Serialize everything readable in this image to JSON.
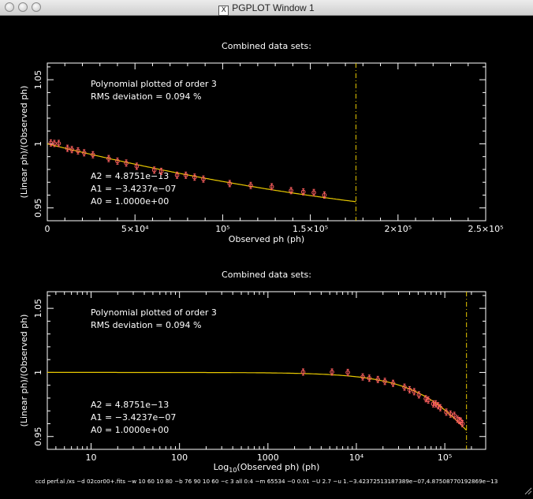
{
  "window": {
    "title": "PGPLOT Window 1",
    "title_icon": "x11-icon"
  },
  "colors": {
    "background": "#000000",
    "axes": "#ffffff",
    "fit": "#e8c800",
    "points": "#ff6060",
    "marker_line": "#e8c800"
  },
  "chart_data": [
    {
      "type": "scatter",
      "title": "Combined data sets:",
      "xlabel": "Observed ph (ph)",
      "ylabel": "(Linear ph)/(Observed ph)",
      "xscale": "linear",
      "xlim": [
        0,
        250000
      ],
      "ylim": [
        0.94,
        1.063
      ],
      "xticks": [
        {
          "value": 0,
          "label": "0"
        },
        {
          "value": 50000,
          "label": "5×10⁴"
        },
        {
          "value": 100000,
          "label": "10⁵"
        },
        {
          "value": 150000,
          "label": "1.5×10⁵"
        },
        {
          "value": 200000,
          "label": "2×10⁵"
        },
        {
          "value": 250000,
          "label": "2.5×10⁵"
        }
      ],
      "yticks": [
        {
          "value": 0.95,
          "label": "0.95"
        },
        {
          "value": 1,
          "label": "1"
        },
        {
          "value": 1.05,
          "label": "1.05"
        }
      ],
      "annotations": {
        "poly": "Polynomial plotted of order  3",
        "rms": "RMS deviation =     0.094  %",
        "a2": "A2 = 4.8751e−13",
        "a1": "A1 = −3.4237e−07",
        "a0": "A0 = 1.0000e+00"
      },
      "vline_x": 176000,
      "fit_range": [
        0,
        176000
      ],
      "points": [
        {
          "x": 2000,
          "y": 1.0007
        },
        {
          "x": 4000,
          "y": 1.0003
        },
        {
          "x": 6500,
          "y": 1.0003
        },
        {
          "x": 11500,
          "y": 0.9965
        },
        {
          "x": 14000,
          "y": 0.9955
        },
        {
          "x": 17500,
          "y": 0.9945
        },
        {
          "x": 21000,
          "y": 0.993
        },
        {
          "x": 26000,
          "y": 0.9915
        },
        {
          "x": 35000,
          "y": 0.9885
        },
        {
          "x": 40000,
          "y": 0.9865
        },
        {
          "x": 45000,
          "y": 0.985
        },
        {
          "x": 51000,
          "y": 0.9825
        },
        {
          "x": 61000,
          "y": 0.9795
        },
        {
          "x": 65000,
          "y": 0.9785
        },
        {
          "x": 74000,
          "y": 0.9755
        },
        {
          "x": 79000,
          "y": 0.9755
        },
        {
          "x": 84000,
          "y": 0.974
        },
        {
          "x": 89000,
          "y": 0.9725
        },
        {
          "x": 104000,
          "y": 0.969
        },
        {
          "x": 116000,
          "y": 0.9675
        },
        {
          "x": 128000,
          "y": 0.9665
        },
        {
          "x": 139000,
          "y": 0.9635
        },
        {
          "x": 146000,
          "y": 0.9625
        },
        {
          "x": 152000,
          "y": 0.962
        },
        {
          "x": 158000,
          "y": 0.96
        }
      ]
    },
    {
      "type": "scatter",
      "title": "Combined data sets:",
      "xlabel": "Log10(Observed ph) (ph)",
      "xlabel_main": "Log",
      "xlabel_sub": "10",
      "xlabel_rest": "(Observed ph) (ph)",
      "ylabel": "(Linear ph)/(Observed ph)",
      "xscale": "log",
      "xlim": [
        3.2,
        290000
      ],
      "ylim": [
        0.94,
        1.063
      ],
      "xticks": [
        {
          "value": 10,
          "label": "10"
        },
        {
          "value": 100,
          "label": "100"
        },
        {
          "value": 1000,
          "label": "1000"
        },
        {
          "value": 10000,
          "label": "10⁴"
        },
        {
          "value": 100000,
          "label": "10⁵"
        }
      ],
      "yticks": [
        {
          "value": 0.95,
          "label": "0.95"
        },
        {
          "value": 1,
          "label": "1"
        },
        {
          "value": 1.05,
          "label": "1.05"
        }
      ],
      "annotations": {
        "poly": "Polynomial plotted of order  3",
        "rms": "RMS deviation =     0.094  %",
        "a2": "A2 = 4.8751e−13",
        "a1": "A1 = −3.4237e−07",
        "a0": "A0 = 1.0000e+00"
      },
      "vline_x": 176000,
      "fit_range": [
        3.2,
        176000
      ],
      "points": [
        {
          "x": 2500,
          "y": 1.0003
        },
        {
          "x": 5300,
          "y": 1.0003
        },
        {
          "x": 8000,
          "y": 1.0
        },
        {
          "x": 11800,
          "y": 0.9965
        },
        {
          "x": 14000,
          "y": 0.9955
        },
        {
          "x": 17500,
          "y": 0.9945
        },
        {
          "x": 21000,
          "y": 0.993
        },
        {
          "x": 26000,
          "y": 0.9915
        },
        {
          "x": 35000,
          "y": 0.9885
        },
        {
          "x": 40000,
          "y": 0.9865
        },
        {
          "x": 45000,
          "y": 0.985
        },
        {
          "x": 51000,
          "y": 0.9825
        },
        {
          "x": 61000,
          "y": 0.9795
        },
        {
          "x": 65000,
          "y": 0.9785
        },
        {
          "x": 74000,
          "y": 0.9755
        },
        {
          "x": 79000,
          "y": 0.9755
        },
        {
          "x": 84000,
          "y": 0.974
        },
        {
          "x": 89000,
          "y": 0.9725
        },
        {
          "x": 104000,
          "y": 0.969
        },
        {
          "x": 116000,
          "y": 0.9675
        },
        {
          "x": 128000,
          "y": 0.9665
        },
        {
          "x": 139000,
          "y": 0.9635
        },
        {
          "x": 146000,
          "y": 0.9625
        },
        {
          "x": 152000,
          "y": 0.962
        },
        {
          "x": 158000,
          "y": 0.96
        }
      ]
    }
  ],
  "footer": {
    "command": "ccd perf.al /xs −d 02cor00+.fits −w 10 60 10 80 −b 76 90 10 60 −c 3 all 0:4 −m 65534 −0 0.01 −U 2.7 −u 1.−3.42372513187389e−07,4.87508770192869e−13"
  }
}
